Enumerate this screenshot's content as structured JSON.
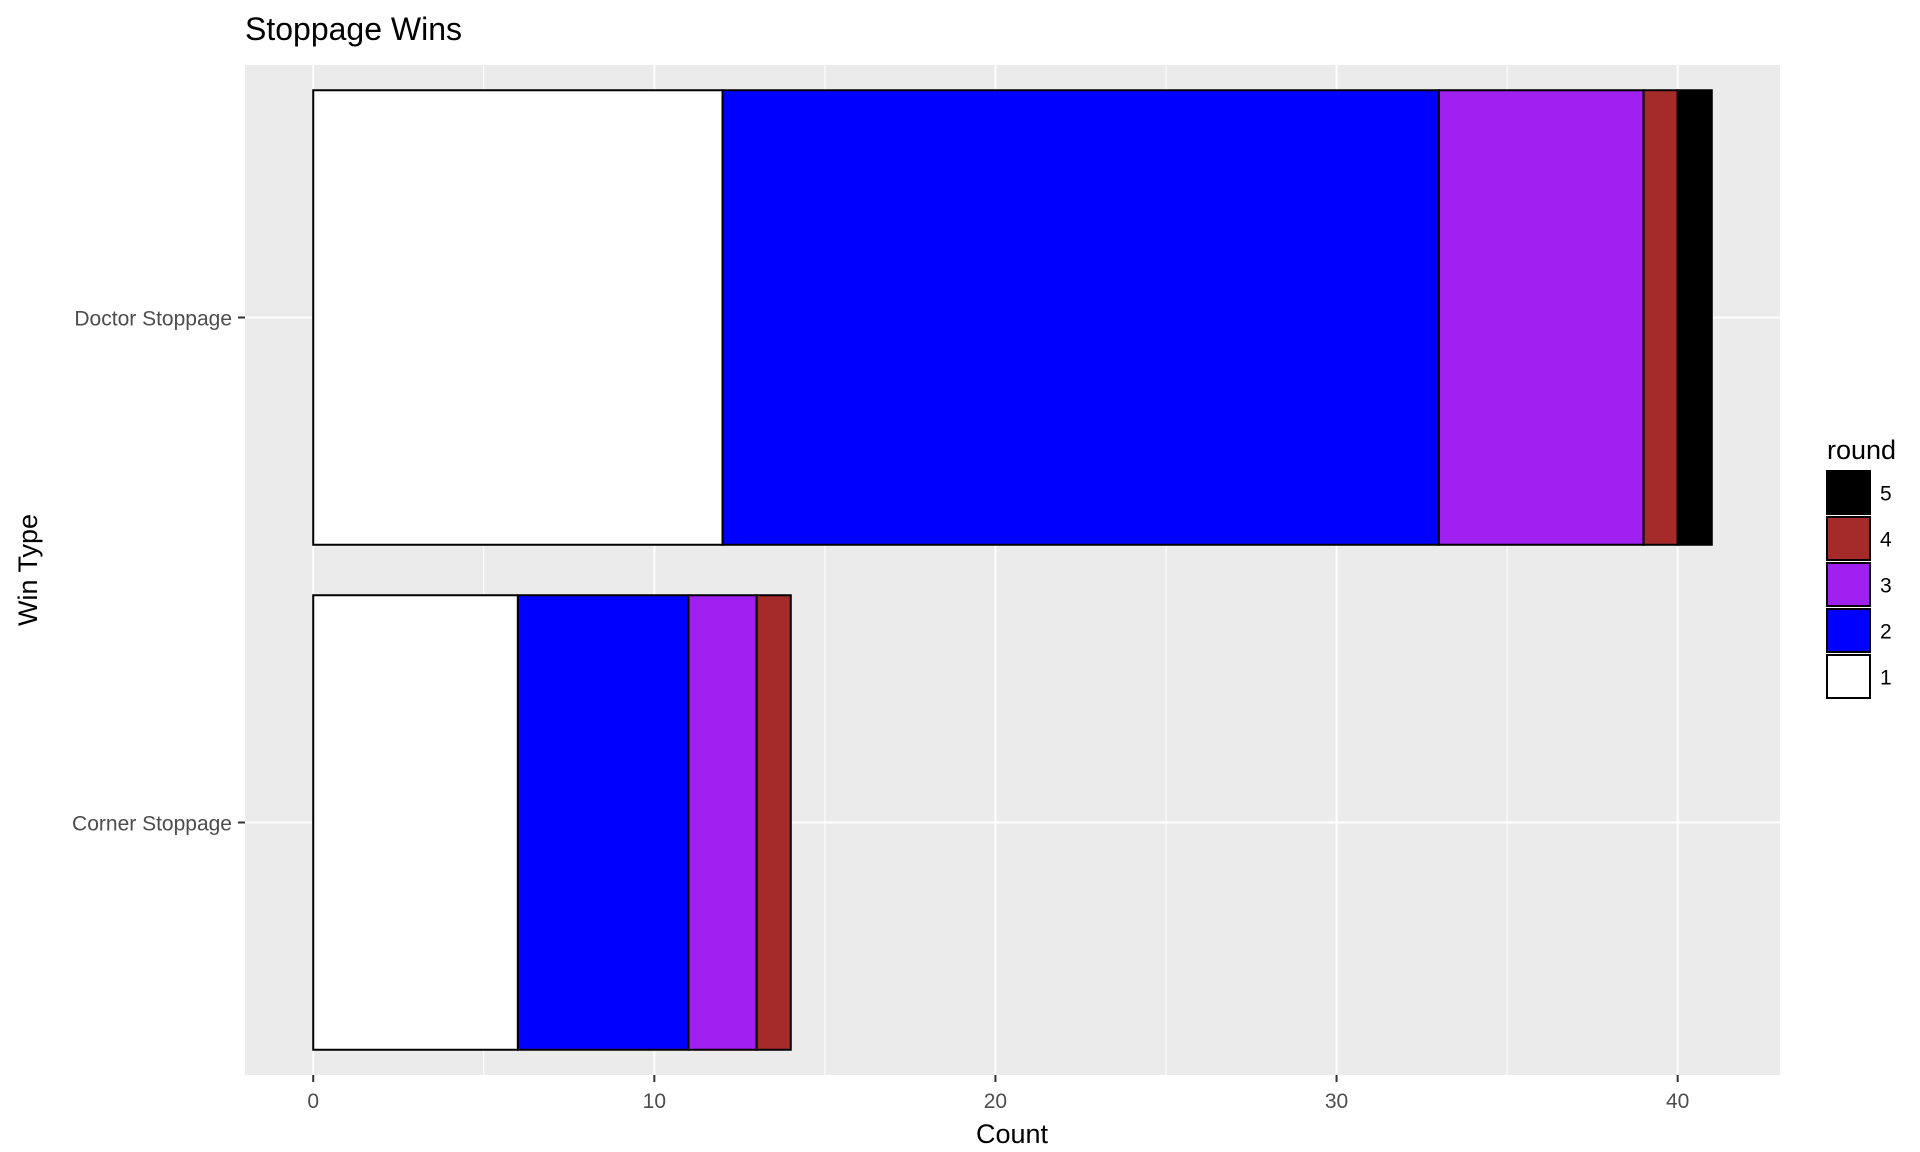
{
  "chart_data": {
    "type": "bar",
    "orientation": "horizontal",
    "stacked": true,
    "title": "Stoppage Wins",
    "xlabel": "Count",
    "ylabel": "Win Type",
    "xlim": [
      -2,
      43
    ],
    "x_ticks": [
      0,
      10,
      20,
      30,
      40
    ],
    "x_tick_labels": [
      "0",
      "10",
      "20",
      "30",
      "40"
    ],
    "categories": [
      "Doctor Stoppage",
      "Corner Stoppage"
    ],
    "series": [
      {
        "name": "1",
        "color": "#ffffff",
        "values": [
          12,
          6
        ]
      },
      {
        "name": "2",
        "color": "#0000ff",
        "values": [
          21,
          5
        ]
      },
      {
        "name": "3",
        "color": "#a020f0",
        "values": [
          6,
          2
        ]
      },
      {
        "name": "4",
        "color": "#a52a2a",
        "values": [
          1,
          1
        ]
      },
      {
        "name": "5",
        "color": "#000000",
        "values": [
          1,
          0
        ]
      }
    ],
    "legend": {
      "title": "round",
      "placement": "right",
      "order": [
        "5",
        "4",
        "3",
        "2",
        "1"
      ]
    },
    "grid": true,
    "panel_background": "#ebebeb",
    "grid_color": "#ffffff",
    "bar_outline": "#000000"
  }
}
